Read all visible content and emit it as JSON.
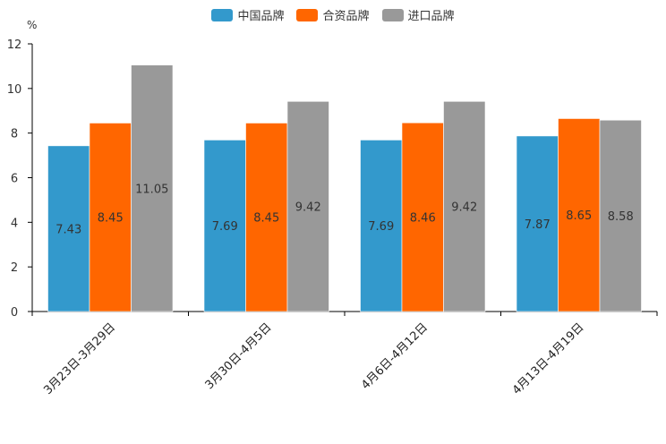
{
  "chart_data": {
    "type": "bar",
    "unit_label": "%",
    "categories": [
      "3月23日-3月29日",
      "3月30日-4月5日",
      "4月6日-4月12日",
      "4月13日-4月19日"
    ],
    "series": [
      {
        "name": "中国品牌",
        "color": "#3399cc",
        "values": [
          7.43,
          7.69,
          7.69,
          7.87
        ],
        "labels": [
          "7.43",
          "7.69",
          "7.69",
          "7.87"
        ]
      },
      {
        "name": "合资品牌",
        "color": "#ff6600",
        "values": [
          8.45,
          8.45,
          8.46,
          8.65
        ],
        "labels": [
          "8.45",
          "8.45",
          "8.46",
          "8.65"
        ]
      },
      {
        "name": "进口品牌",
        "color": "#999999",
        "values": [
          11.05,
          9.42,
          9.42,
          8.58
        ],
        "labels": [
          "11.05",
          "9.42",
          "9.42",
          "8.58"
        ]
      }
    ],
    "ylim": [
      0,
      12
    ],
    "yticks": [
      "0",
      "2",
      "4",
      "6",
      "8",
      "10",
      "12"
    ],
    "grid": false,
    "legend_position": "top-center"
  }
}
